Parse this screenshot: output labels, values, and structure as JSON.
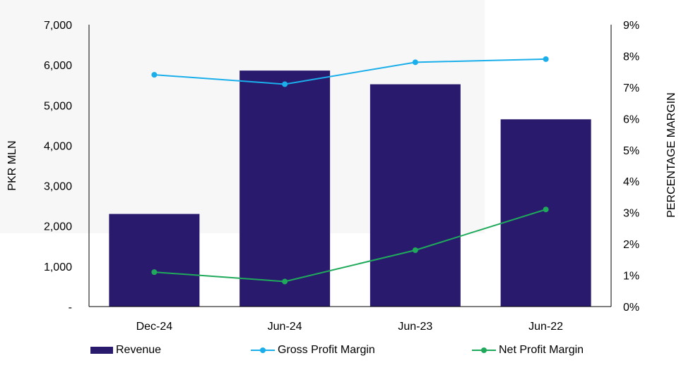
{
  "chart_data": {
    "type": "bar",
    "categories": [
      "Dec-24",
      "Jun-24",
      "Jun-23",
      "Jun-22"
    ],
    "series": [
      {
        "name": "Revenue",
        "type": "bar",
        "axis": "left",
        "color": "#2a1a6e",
        "values": [
          2300,
          5860,
          5520,
          4650
        ]
      },
      {
        "name": "Gross Profit Margin",
        "type": "line",
        "axis": "right",
        "color": "#1aaeea",
        "values": [
          7.4,
          7.1,
          7.8,
          7.9
        ]
      },
      {
        "name": "Net Profit Margin",
        "type": "line",
        "axis": "right",
        "color": "#1eaa5a",
        "values": [
          1.1,
          0.8,
          1.8,
          3.1
        ]
      }
    ],
    "ylabel": "PKR MLN",
    "y2label": "PERCENTAGE MARGIN",
    "ylim": [
      0,
      7000
    ],
    "y2lim": [
      0,
      9
    ],
    "yticks": [
      "-",
      "1,000",
      "2,000",
      "3,000",
      "4,000",
      "5,000",
      "6,000",
      "7,000"
    ],
    "y2ticks": [
      "0%",
      "1%",
      "2%",
      "3%",
      "4%",
      "5%",
      "6%",
      "7%",
      "8%",
      "9%"
    ],
    "grid": false,
    "legend": "bottom"
  }
}
